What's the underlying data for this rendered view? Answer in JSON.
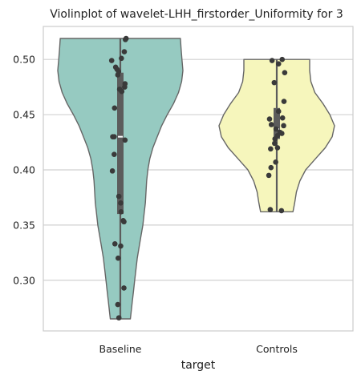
{
  "chart_data": {
    "type": "violin",
    "title": "Violinplot of wavelet-LHH_firstorder_Uniformity for 3",
    "xlabel": "target",
    "ylabel": "",
    "ylim": [
      0.255,
      0.53
    ],
    "yticks": [
      "0.30",
      "0.35",
      "0.40",
      "0.45",
      "0.50"
    ],
    "yticks_values": [
      0.3,
      0.35,
      0.4,
      0.45,
      0.5
    ],
    "grid": true,
    "categories": [
      "Baseline",
      "Controls"
    ],
    "colors": {
      "Baseline": "#96cac1",
      "Controls": "#f6f6bc",
      "outline": "#666666",
      "points": "#3a3a3a",
      "grid": "#d0d0d0"
    },
    "violins": [
      {
        "name": "Baseline",
        "min": 0.265,
        "max": 0.519,
        "q1": 0.36,
        "q3": 0.488,
        "median": 0.43,
        "profile": [
          [
            0.519,
            0.96
          ],
          [
            0.51,
            0.97
          ],
          [
            0.5,
            0.985
          ],
          [
            0.49,
            1.0
          ],
          [
            0.48,
            0.98
          ],
          [
            0.47,
            0.93
          ],
          [
            0.46,
            0.85
          ],
          [
            0.45,
            0.75
          ],
          [
            0.44,
            0.66
          ],
          [
            0.43,
            0.59
          ],
          [
            0.42,
            0.52
          ],
          [
            0.41,
            0.47
          ],
          [
            0.4,
            0.44
          ],
          [
            0.39,
            0.42
          ],
          [
            0.38,
            0.41
          ],
          [
            0.37,
            0.4
          ],
          [
            0.36,
            0.38
          ],
          [
            0.35,
            0.36
          ],
          [
            0.34,
            0.33
          ],
          [
            0.33,
            0.3
          ],
          [
            0.32,
            0.27
          ],
          [
            0.31,
            0.25
          ],
          [
            0.3,
            0.23
          ],
          [
            0.29,
            0.21
          ],
          [
            0.28,
            0.19
          ],
          [
            0.27,
            0.17
          ],
          [
            0.265,
            0.16
          ]
        ],
        "points": [
          [
            0.519,
            0.16
          ],
          [
            0.518,
            0.14
          ],
          [
            0.507,
            0.11
          ],
          [
            0.501,
            0.03
          ],
          [
            0.499,
            -0.24
          ],
          [
            0.493,
            -0.13
          ],
          [
            0.491,
            -0.09
          ],
          [
            0.489,
            -0.05
          ],
          [
            0.486,
            -0.07
          ],
          [
            0.478,
            0.13
          ],
          [
            0.475,
            0.12
          ],
          [
            0.473,
            -0.02
          ],
          [
            0.471,
            0.04
          ],
          [
            0.456,
            -0.16
          ],
          [
            0.43,
            -0.21
          ],
          [
            0.43,
            -0.17
          ],
          [
            0.427,
            0.13
          ],
          [
            0.414,
            -0.17
          ],
          [
            0.399,
            -0.22
          ],
          [
            0.376,
            -0.04
          ],
          [
            0.37,
            0.01
          ],
          [
            0.362,
            0.02
          ],
          [
            0.354,
            0.08
          ],
          [
            0.353,
            0.1
          ],
          [
            0.333,
            -0.15
          ],
          [
            0.331,
            0.01
          ],
          [
            0.32,
            -0.06
          ],
          [
            0.293,
            0.1
          ],
          [
            0.278,
            -0.07
          ],
          [
            0.266,
            -0.04
          ]
        ]
      },
      {
        "name": "Controls",
        "min": 0.362,
        "max": 0.5,
        "q1": 0.428,
        "q3": 0.456,
        "median": 0.437,
        "profile": [
          [
            0.5,
            0.57
          ],
          [
            0.49,
            0.57
          ],
          [
            0.48,
            0.59
          ],
          [
            0.47,
            0.66
          ],
          [
            0.46,
            0.8
          ],
          [
            0.45,
            0.92
          ],
          [
            0.44,
            1.0
          ],
          [
            0.43,
            0.96
          ],
          [
            0.42,
            0.84
          ],
          [
            0.41,
            0.67
          ],
          [
            0.4,
            0.5
          ],
          [
            0.39,
            0.4
          ],
          [
            0.38,
            0.34
          ],
          [
            0.37,
            0.31
          ],
          [
            0.362,
            0.28
          ]
        ],
        "points": [
          [
            0.5,
            0.15
          ],
          [
            0.499,
            -0.13
          ],
          [
            0.496,
            0.05
          ],
          [
            0.488,
            0.22
          ],
          [
            0.479,
            -0.07
          ],
          [
            0.462,
            0.2
          ],
          [
            0.453,
            0.05
          ],
          [
            0.447,
            0.16
          ],
          [
            0.446,
            -0.2
          ],
          [
            0.441,
            -0.15
          ],
          [
            0.44,
            0.19
          ],
          [
            0.437,
            -0.02
          ],
          [
            0.434,
            0.09
          ],
          [
            0.433,
            0.14
          ],
          [
            0.431,
            0.02
          ],
          [
            0.428,
            -0.05
          ],
          [
            0.424,
            -0.06
          ],
          [
            0.42,
            0.02
          ],
          [
            0.419,
            -0.17
          ],
          [
            0.407,
            -0.03
          ],
          [
            0.402,
            -0.16
          ],
          [
            0.395,
            -0.22
          ],
          [
            0.364,
            -0.18
          ],
          [
            0.363,
            0.13
          ]
        ]
      }
    ]
  }
}
